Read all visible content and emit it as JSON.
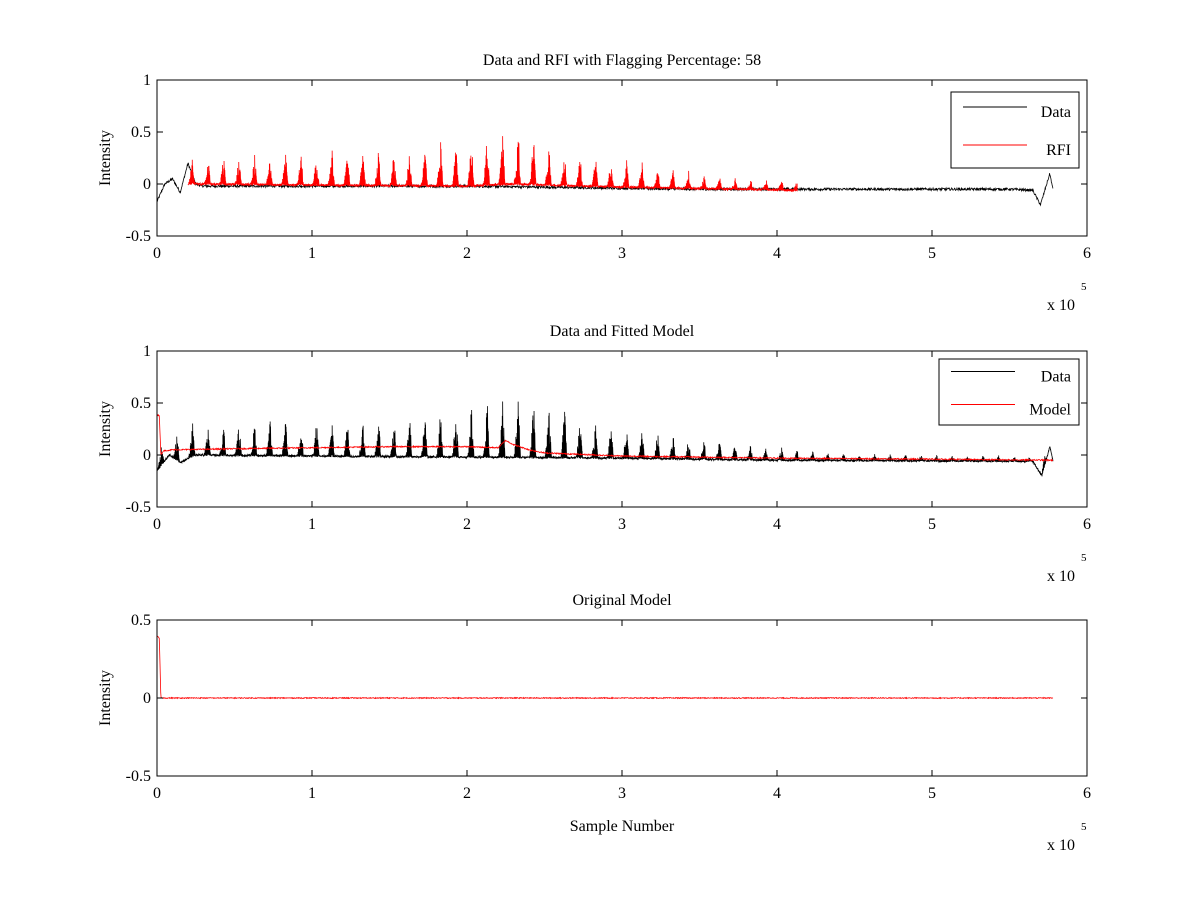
{
  "figure": {
    "background": "#ffffff"
  },
  "chart_data": [
    {
      "type": "line",
      "title": "Data and RFI with Flagging Percentage: 58",
      "xlabel": "",
      "ylabel": "Intensity",
      "xlim": [
        0,
        600000
      ],
      "ylim": [
        -0.5,
        1
      ],
      "xticks": [
        0,
        1,
        2,
        3,
        4,
        5,
        6
      ],
      "xtick_labels": [
        "0",
        "1",
        "2",
        "3",
        "4",
        "5",
        "6"
      ],
      "yticks": [
        -0.5,
        0,
        0.5,
        1
      ],
      "ytick_labels": [
        "-0.5",
        "0",
        "0.5",
        "1"
      ],
      "x_multiplier_text": "x 10",
      "x_multiplier_exp": "5",
      "grid": false,
      "legend": "top-right",
      "series": [
        {
          "name": "Data",
          "color": "#000000",
          "style": "noisy",
          "noise": 0.012,
          "x": [
            0,
            5000,
            10000,
            15000,
            20000,
            25000,
            30000,
            40000,
            60000,
            80000,
            100000,
            150000,
            200000,
            250000,
            300000,
            350000,
            400000,
            450000,
            500000,
            550000,
            565000,
            570000,
            573000,
            576000,
            578000
          ],
          "y": [
            -0.17,
            0.0,
            0.05,
            -0.08,
            0.2,
            0.0,
            -0.02,
            -0.02,
            -0.02,
            -0.02,
            -0.02,
            -0.02,
            -0.02,
            -0.03,
            -0.04,
            -0.05,
            -0.05,
            -0.05,
            -0.05,
            -0.05,
            -0.06,
            -0.2,
            -0.05,
            0.1,
            -0.05
          ]
        },
        {
          "name": "RFI",
          "color": "#ff0000",
          "style": "spikes",
          "x_start": 20000,
          "x_end": 413000,
          "period": 10000,
          "base": [
            [
              20000,
              0.0
            ],
            [
              100000,
              -0.01
            ],
            [
              200000,
              -0.02
            ],
            [
              230000,
              0.0
            ],
            [
              300000,
              -0.03
            ],
            [
              413000,
              -0.06
            ]
          ],
          "peak": [
            [
              20000,
              0.22
            ],
            [
              150000,
              0.28
            ],
            [
              190000,
              0.35
            ],
            [
              230000,
              0.5
            ],
            [
              260000,
              0.25
            ],
            [
              300000,
              0.2
            ],
            [
              360000,
              0.05
            ],
            [
              413000,
              0.02
            ]
          ]
        }
      ]
    },
    {
      "type": "line",
      "title": "Data and Fitted Model",
      "xlabel": "",
      "ylabel": "Intensity",
      "xlim": [
        0,
        600000
      ],
      "ylim": [
        -0.5,
        1
      ],
      "xticks": [
        0,
        1,
        2,
        3,
        4,
        5,
        6
      ],
      "xtick_labels": [
        "0",
        "1",
        "2",
        "3",
        "4",
        "5",
        "6"
      ],
      "yticks": [
        -0.5,
        0,
        0.5,
        1
      ],
      "ytick_labels": [
        "-0.5",
        "0",
        "0.5",
        "1"
      ],
      "x_multiplier_text": "x 10",
      "x_multiplier_exp": "5",
      "grid": false,
      "legend": "top-right",
      "series": [
        {
          "name": "Data",
          "color": "#000000",
          "style": "spikes",
          "x_start": 0,
          "x_end": 578000,
          "period": 10000,
          "base": [
            [
              0,
              -0.15
            ],
            [
              8000,
              0.0
            ],
            [
              15000,
              -0.07
            ],
            [
              25000,
              0.0
            ],
            [
              100000,
              -0.01
            ],
            [
              200000,
              -0.02
            ],
            [
              300000,
              -0.03
            ],
            [
              400000,
              -0.05
            ],
            [
              565000,
              -0.06
            ],
            [
              571000,
              -0.2
            ],
            [
              576000,
              0.08
            ],
            [
              578000,
              -0.05
            ]
          ],
          "peak": [
            [
              0,
              0.05
            ],
            [
              20000,
              0.25
            ],
            [
              150000,
              0.3
            ],
            [
              190000,
              0.38
            ],
            [
              230000,
              0.5
            ],
            [
              300000,
              0.22
            ],
            [
              400000,
              0.05
            ],
            [
              450000,
              0.0
            ],
            [
              578000,
              -0.02
            ]
          ]
        },
        {
          "name": "Model",
          "color": "#ff0000",
          "style": "noisy",
          "noise": 0.006,
          "x": [
            0,
            1500,
            2500,
            4000,
            10000,
            50000,
            100000,
            150000,
            200000,
            220000,
            225000,
            230000,
            240000,
            250000,
            300000,
            400000,
            500000,
            578000
          ],
          "y": [
            0.38,
            0.38,
            0.0,
            0.04,
            0.05,
            0.06,
            0.07,
            0.08,
            0.08,
            0.07,
            0.14,
            0.1,
            0.05,
            0.02,
            -0.01,
            -0.03,
            -0.04,
            -0.05
          ]
        }
      ]
    },
    {
      "type": "line",
      "title": "Original Model",
      "xlabel": "Sample Number",
      "ylabel": "Intensity",
      "xlim": [
        0,
        600000
      ],
      "ylim": [
        -0.5,
        0.5
      ],
      "xticks": [
        0,
        1,
        2,
        3,
        4,
        5,
        6
      ],
      "xtick_labels": [
        "0",
        "1",
        "2",
        "3",
        "4",
        "5",
        "6"
      ],
      "yticks": [
        -0.5,
        0,
        0.5
      ],
      "ytick_labels": [
        "-0.5",
        "0",
        "0.5"
      ],
      "x_multiplier_text": "x 10",
      "x_multiplier_exp": "5",
      "grid": false,
      "legend": "none",
      "series": [
        {
          "name": "",
          "color": "#ff0000",
          "style": "noisy",
          "noise": 0.003,
          "x": [
            0,
            1500,
            2500,
            4000,
            100000,
            300000,
            500000,
            578000
          ],
          "y": [
            0.4,
            0.38,
            0.0,
            0.0,
            0.0,
            0.0,
            0.0,
            0.0
          ]
        }
      ]
    }
  ]
}
